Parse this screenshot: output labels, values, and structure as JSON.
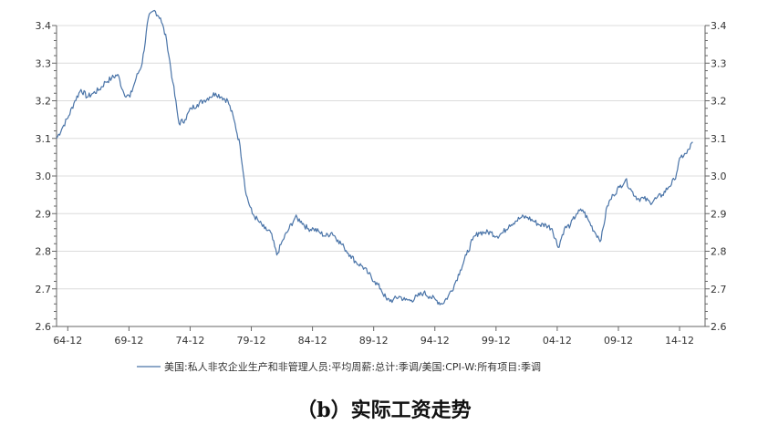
{
  "chart_data": {
    "type": "line",
    "caption": "（b）实际工资走势",
    "y_ticks": [
      "3.4",
      "3.3",
      "3.2",
      "3.1",
      "3.0",
      "2.9",
      "2.8",
      "2.7",
      "2.6"
    ],
    "y_tick_values": [
      3.4,
      3.3,
      3.2,
      3.1,
      3.0,
      2.9,
      2.8,
      2.7,
      2.6
    ],
    "x_ticks": [
      "64-12",
      "69-12",
      "74-12",
      "79-12",
      "84-12",
      "89-12",
      "94-12",
      "99-12",
      "04-12",
      "09-12",
      "14-12"
    ],
    "x_tick_years": [
      1964.917,
      1969.917,
      1974.917,
      1979.917,
      1984.917,
      1989.917,
      1994.917,
      1999.917,
      2004.917,
      2009.917,
      2014.917
    ],
    "ylim": [
      2.6,
      3.4
    ],
    "xlim": [
      1964.0,
      2017.0
    ],
    "grid": true,
    "legend_position": "bottom",
    "series": [
      {
        "name": "美国:私人非农企业生产和非管理人员:平均周薪:总计:季调/美国:CPI-W:所有项目:季调",
        "color": "#4a74a8",
        "x": [
          1964.0,
          1964.5,
          1965.0,
          1965.5,
          1966.0,
          1966.5,
          1967.0,
          1967.5,
          1968.0,
          1968.5,
          1969.0,
          1969.5,
          1970.0,
          1970.5,
          1971.0,
          1971.5,
          1972.0,
          1972.5,
          1973.0,
          1973.5,
          1974.0,
          1974.5,
          1975.0,
          1975.5,
          1976.0,
          1976.5,
          1977.0,
          1977.5,
          1978.0,
          1978.5,
          1979.0,
          1979.5,
          1980.0,
          1980.5,
          1981.0,
          1981.5,
          1982.0,
          1982.5,
          1983.0,
          1983.5,
          1984.0,
          1984.5,
          1985.0,
          1985.5,
          1986.0,
          1986.5,
          1987.0,
          1987.5,
          1988.0,
          1988.5,
          1989.0,
          1989.5,
          1990.0,
          1990.5,
          1991.0,
          1991.5,
          1992.0,
          1992.5,
          1993.0,
          1993.5,
          1994.0,
          1994.5,
          1995.0,
          1995.5,
          1996.0,
          1996.5,
          1997.0,
          1997.5,
          1998.0,
          1998.5,
          1999.0,
          1999.5,
          2000.0,
          2000.5,
          2001.0,
          2001.5,
          2002.0,
          2002.5,
          2003.0,
          2003.5,
          2004.0,
          2004.5,
          2005.0,
          2005.5,
          2006.0,
          2006.5,
          2007.0,
          2007.5,
          2008.0,
          2008.5,
          2009.0,
          2009.5,
          2010.0,
          2010.5,
          2011.0,
          2011.5,
          2012.0,
          2012.5,
          2013.0,
          2013.5,
          2014.0,
          2014.5,
          2015.0,
          2015.5,
          2016.0
        ],
        "y": [
          3.1,
          3.13,
          3.16,
          3.2,
          3.23,
          3.21,
          3.22,
          3.23,
          3.25,
          3.26,
          3.27,
          3.22,
          3.21,
          3.26,
          3.3,
          3.42,
          3.44,
          3.42,
          3.36,
          3.25,
          3.14,
          3.15,
          3.18,
          3.19,
          3.2,
          3.21,
          3.22,
          3.21,
          3.2,
          3.15,
          3.08,
          2.95,
          2.9,
          2.88,
          2.86,
          2.85,
          2.79,
          2.83,
          2.86,
          2.89,
          2.88,
          2.86,
          2.86,
          2.85,
          2.84,
          2.85,
          2.83,
          2.81,
          2.79,
          2.77,
          2.76,
          2.74,
          2.72,
          2.7,
          2.67,
          2.67,
          2.68,
          2.67,
          2.67,
          2.68,
          2.69,
          2.68,
          2.67,
          2.66,
          2.68,
          2.71,
          2.75,
          2.79,
          2.83,
          2.85,
          2.85,
          2.85,
          2.84,
          2.85,
          2.87,
          2.88,
          2.89,
          2.89,
          2.88,
          2.87,
          2.87,
          2.86,
          2.81,
          2.86,
          2.87,
          2.9,
          2.91,
          2.88,
          2.85,
          2.83,
          2.92,
          2.95,
          2.97,
          2.99,
          2.96,
          2.94,
          2.94,
          2.93,
          2.94,
          2.95,
          2.97,
          2.99,
          3.05,
          3.06,
          3.09
        ]
      }
    ]
  }
}
